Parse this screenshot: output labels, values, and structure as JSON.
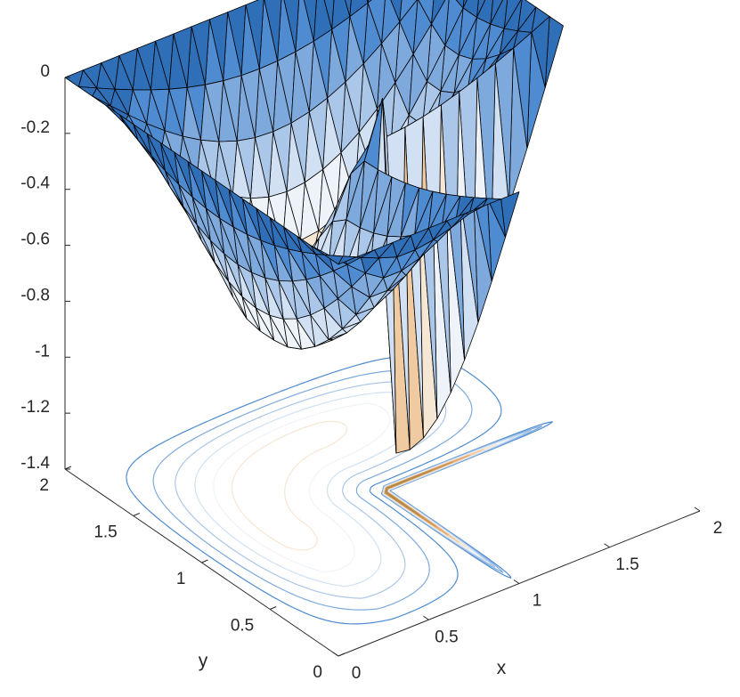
{
  "chart_data": {
    "type": "surface3d",
    "title": "",
    "xlabel": "x",
    "ylabel": "y",
    "zlabel": "",
    "xlim": [
      0,
      2
    ],
    "ylim": [
      0,
      2
    ],
    "zlim": [
      -1.4,
      0
    ],
    "xticks": [
      "0",
      "0.5",
      "1",
      "1.5",
      "2"
    ],
    "yticks": [
      "0",
      "0.5",
      "1",
      "1.5",
      "2"
    ],
    "zticks": [
      "0",
      "-0.2",
      "-0.4",
      "-0.6",
      "-0.8",
      "-1",
      "-1.2",
      "-1.4"
    ],
    "domain": "L-shaped region (square [0,2]x[0,2] minus the quadrant x>1, y<1)",
    "surface": "triangulated mesh, zero on the boundary, minimum near x=0.5, y=1.5",
    "z_min": -1.25,
    "contour_plane_z": -1.4,
    "colormap": [
      "#2f6fb8",
      "#4e8bd0",
      "#7ea9dc",
      "#aac6e8",
      "#d1e1f3",
      "#eef3f9",
      "#f6e6d4",
      "#f0caa0",
      "#e3a971",
      "#c99352",
      "#b08a4a"
    ],
    "grid": false
  }
}
